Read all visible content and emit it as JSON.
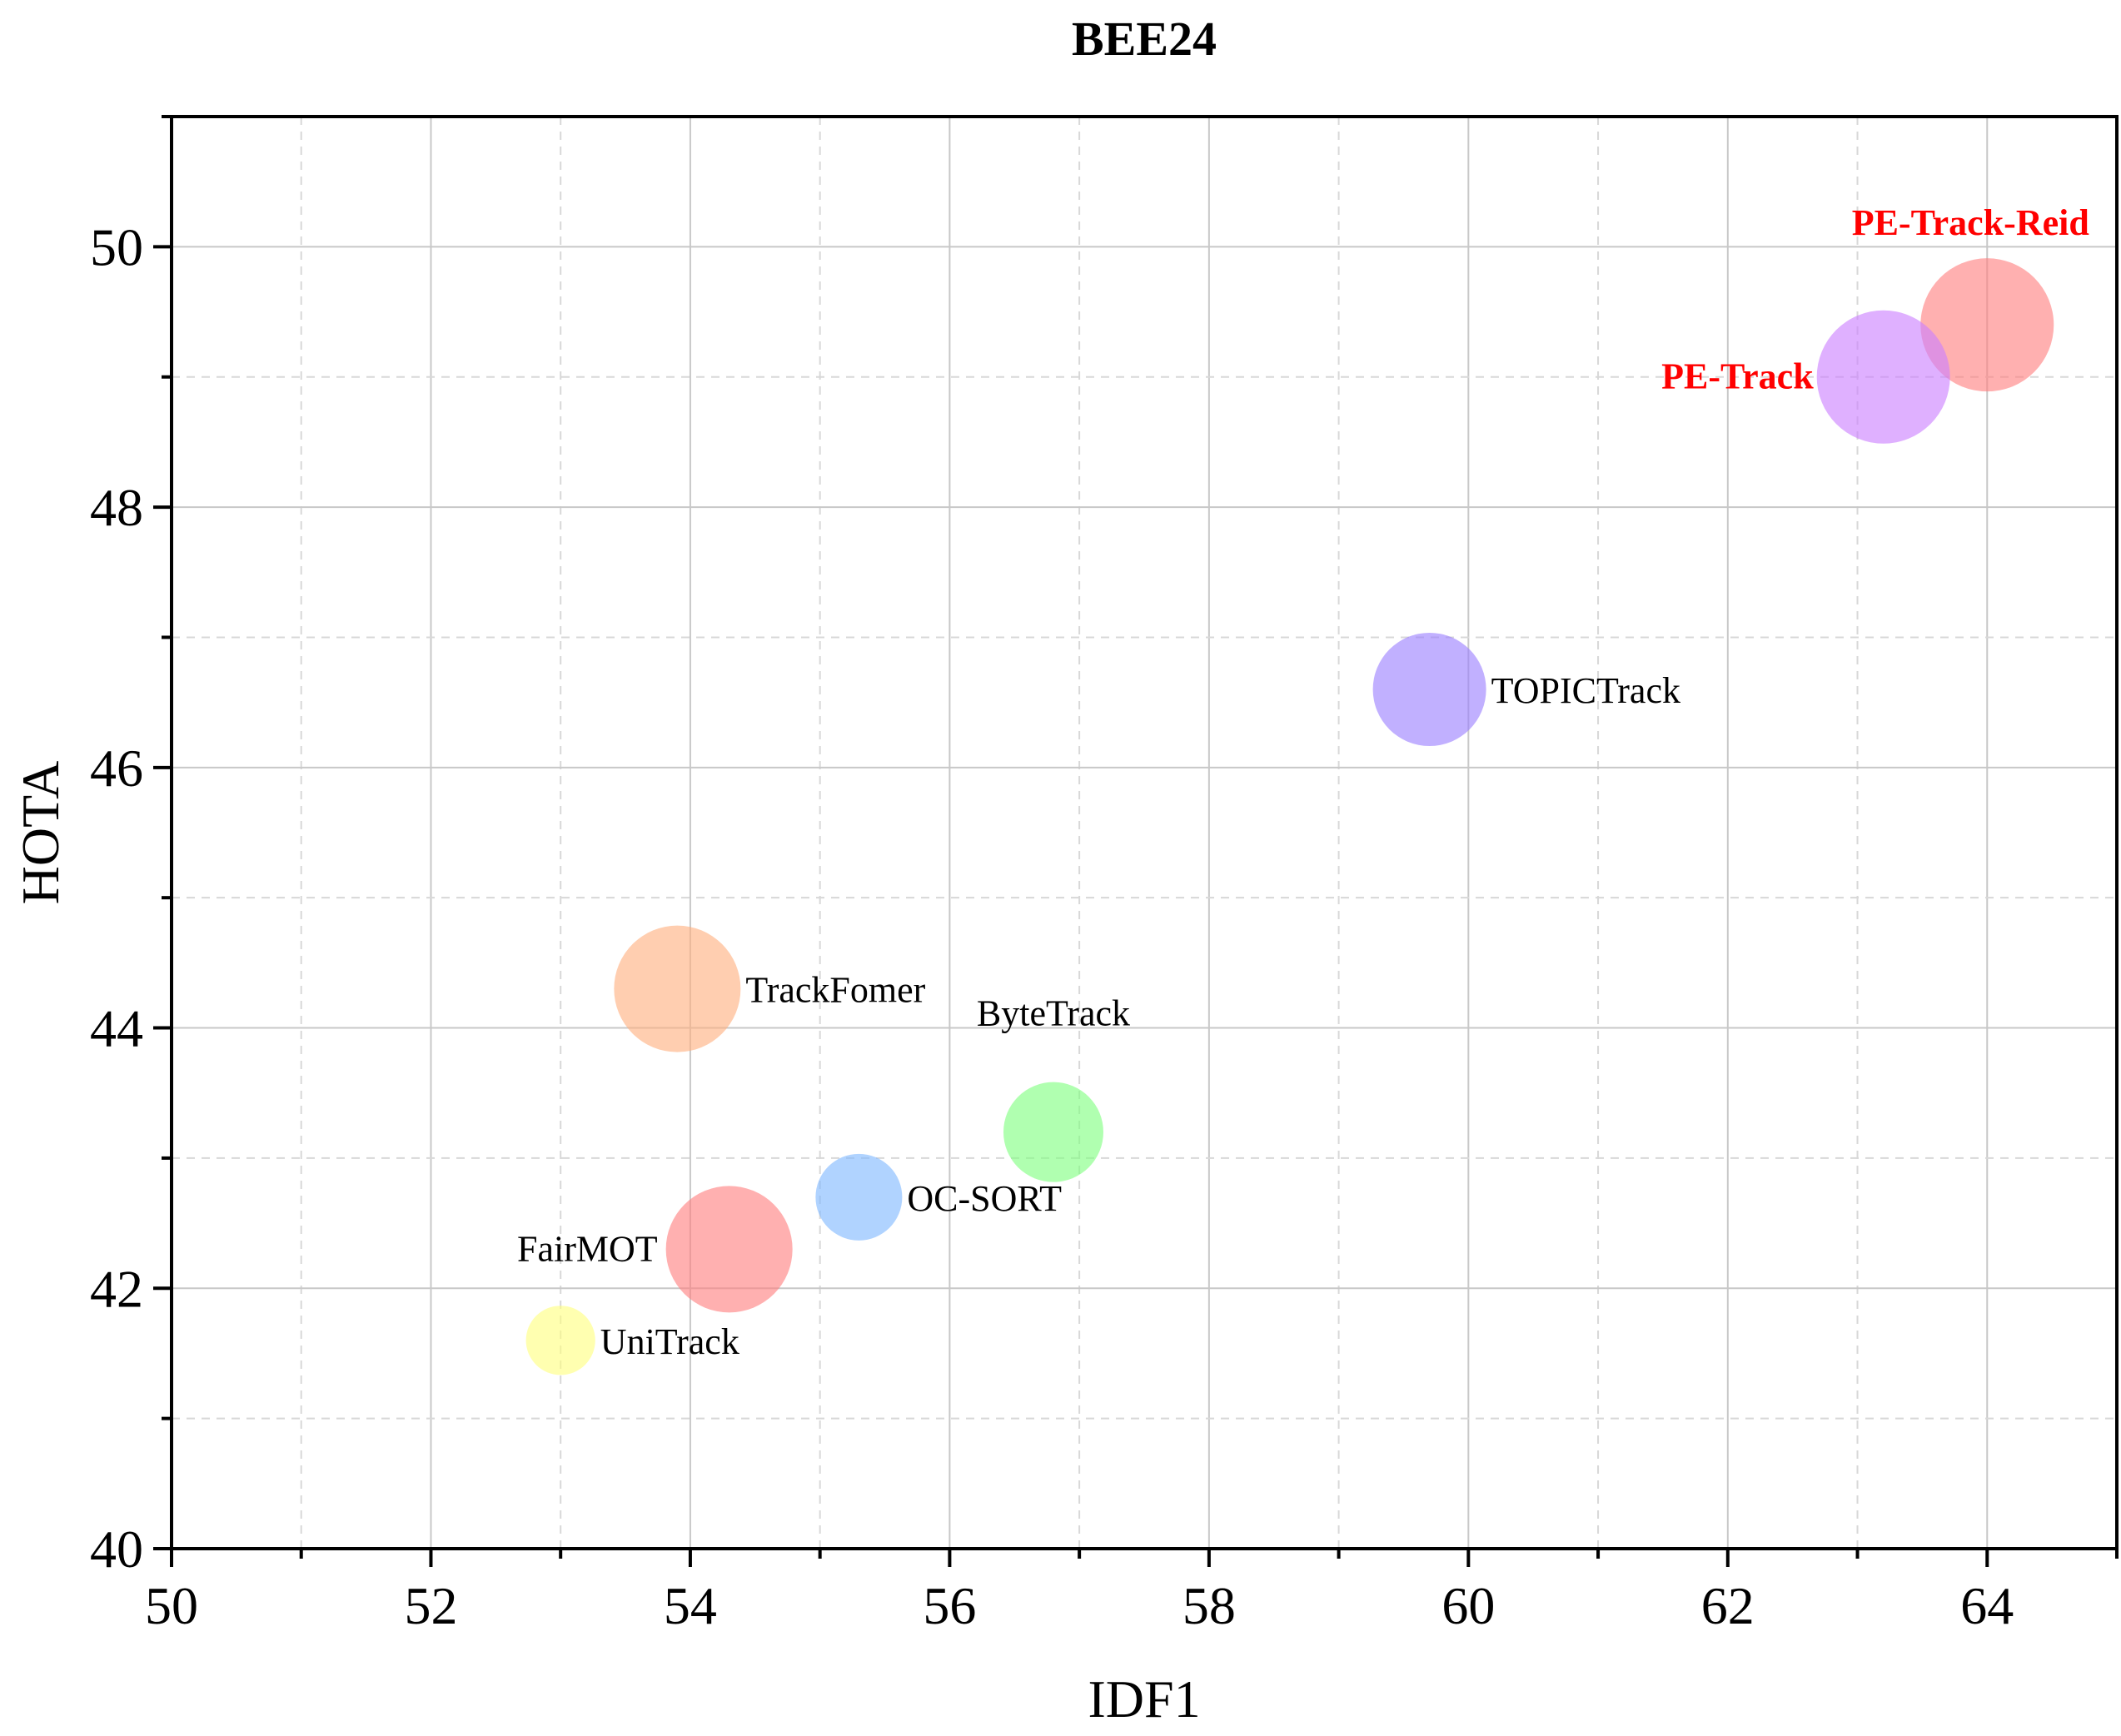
{
  "chart_data": {
    "type": "scatter",
    "title": "BEE24",
    "xlabel": "IDF1",
    "ylabel": "HOTA",
    "xlim": [
      50,
      65
    ],
    "ylim": [
      40,
      51
    ],
    "xticks": [
      50,
      52,
      54,
      56,
      58,
      60,
      62,
      64
    ],
    "yticks": [
      40,
      42,
      44,
      46,
      48,
      50
    ],
    "grid": true,
    "highlight_color": "#ff0000",
    "points": [
      {
        "label": "PE-Track-Reid",
        "x": 64.0,
        "y": 49.4,
        "size": 1.0,
        "color": "#ff8080",
        "highlight": true
      },
      {
        "label": "PE-Track",
        "x": 63.2,
        "y": 49.0,
        "size": 1.0,
        "color": "#cc80ff",
        "highlight": true
      },
      {
        "label": "TOPICTrack",
        "x": 59.7,
        "y": 46.6,
        "size": 0.85,
        "color": "#9b80ff",
        "highlight": false
      },
      {
        "label": "TrackFomer",
        "x": 53.9,
        "y": 44.3,
        "size": 0.95,
        "color": "#ffb080",
        "highlight": false
      },
      {
        "label": "ByteTrack",
        "x": 56.8,
        "y": 43.2,
        "size": 0.75,
        "color": "#80ff80",
        "highlight": false
      },
      {
        "label": "OC-SORT",
        "x": 55.3,
        "y": 42.7,
        "size": 0.65,
        "color": "#80b8ff",
        "highlight": false
      },
      {
        "label": "FairMOT",
        "x": 54.3,
        "y": 42.3,
        "size": 0.95,
        "color": "#ff8080",
        "highlight": false
      },
      {
        "label": "UniTrack",
        "x": 53.0,
        "y": 41.6,
        "size": 0.52,
        "color": "#ffff80",
        "highlight": false
      }
    ]
  }
}
